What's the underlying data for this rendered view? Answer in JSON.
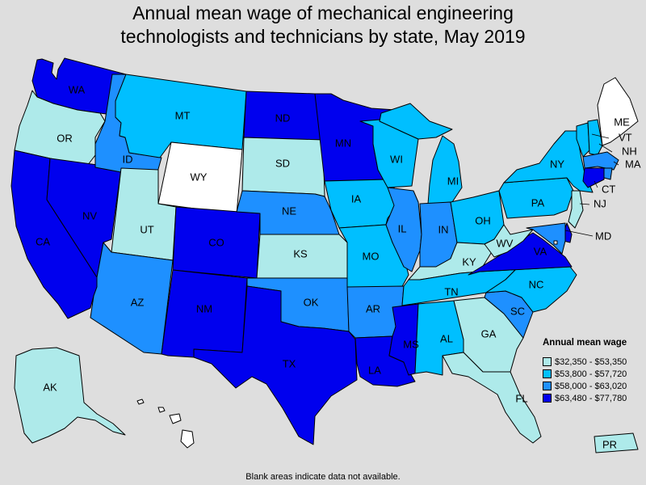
{
  "title": {
    "line1": "Annual mean wage of mechanical engineering",
    "line2": "technologists and technicians by state, May 2019"
  },
  "legend": {
    "title": "Annual mean wage",
    "items": [
      {
        "label": "$32,350 - $53,350",
        "color": "#aeeaea"
      },
      {
        "label": "$53,800 - $57,720",
        "color": "#00bfff"
      },
      {
        "label": "$58,000 - $63,020",
        "color": "#1e90ff"
      },
      {
        "label": "$63,480 - $77,780",
        "color": "#0000ee"
      }
    ],
    "no_data_color": "#ffffff"
  },
  "footnote": "Blank areas indicate data not available.",
  "states": [
    {
      "abbr": "WA",
      "tier": 3
    },
    {
      "abbr": "OR",
      "tier": 0
    },
    {
      "abbr": "CA",
      "tier": 3
    },
    {
      "abbr": "NV",
      "tier": 3
    },
    {
      "abbr": "ID",
      "tier": 2
    },
    {
      "abbr": "MT",
      "tier": 1
    },
    {
      "abbr": "WY",
      "tier": null
    },
    {
      "abbr": "UT",
      "tier": 0
    },
    {
      "abbr": "AZ",
      "tier": 2
    },
    {
      "abbr": "CO",
      "tier": 3
    },
    {
      "abbr": "NM",
      "tier": 3
    },
    {
      "abbr": "ND",
      "tier": 3
    },
    {
      "abbr": "SD",
      "tier": 0
    },
    {
      "abbr": "NE",
      "tier": 2
    },
    {
      "abbr": "KS",
      "tier": 0
    },
    {
      "abbr": "OK",
      "tier": 2
    },
    {
      "abbr": "TX",
      "tier": 3
    },
    {
      "abbr": "MN",
      "tier": 3
    },
    {
      "abbr": "IA",
      "tier": 1
    },
    {
      "abbr": "MO",
      "tier": 1
    },
    {
      "abbr": "AR",
      "tier": 2
    },
    {
      "abbr": "LA",
      "tier": 3
    },
    {
      "abbr": "WI",
      "tier": 1
    },
    {
      "abbr": "IL",
      "tier": 2
    },
    {
      "abbr": "MI",
      "tier": 1
    },
    {
      "abbr": "IN",
      "tier": 2
    },
    {
      "abbr": "OH",
      "tier": 1
    },
    {
      "abbr": "KY",
      "tier": 0
    },
    {
      "abbr": "TN",
      "tier": 1
    },
    {
      "abbr": "MS",
      "tier": 3
    },
    {
      "abbr": "AL",
      "tier": 1
    },
    {
      "abbr": "GA",
      "tier": 0
    },
    {
      "abbr": "FL",
      "tier": 0
    },
    {
      "abbr": "SC",
      "tier": 2
    },
    {
      "abbr": "NC",
      "tier": 1
    },
    {
      "abbr": "VA",
      "tier": 3
    },
    {
      "abbr": "WV",
      "tier": 0
    },
    {
      "abbr": "PA",
      "tier": 1
    },
    {
      "abbr": "NY",
      "tier": 1
    },
    {
      "abbr": "VT",
      "tier": 1
    },
    {
      "abbr": "NH",
      "tier": 1
    },
    {
      "abbr": "ME",
      "tier": null
    },
    {
      "abbr": "MA",
      "tier": 2
    },
    {
      "abbr": "RI",
      "tier": 2
    },
    {
      "abbr": "CT",
      "tier": 3
    },
    {
      "abbr": "NJ",
      "tier": 0
    },
    {
      "abbr": "DE",
      "tier": 3
    },
    {
      "abbr": "MD",
      "tier": 2
    },
    {
      "abbr": "DC",
      "tier": null
    },
    {
      "abbr": "AK",
      "tier": 0
    },
    {
      "abbr": "HI",
      "tier": null
    },
    {
      "abbr": "PR",
      "tier": 0
    }
  ]
}
